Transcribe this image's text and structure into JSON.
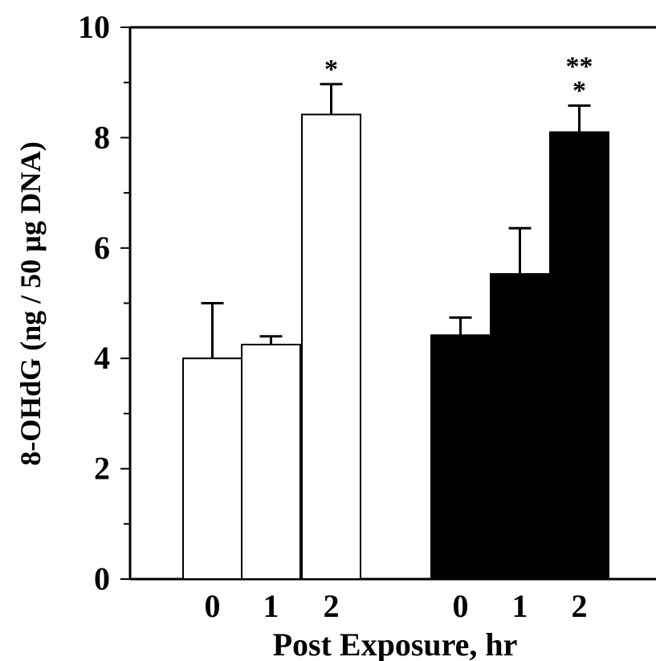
{
  "chart_data": {
    "type": "bar",
    "title": "",
    "xlabel": "Post Exposure, hr",
    "ylabel": "8-OHdG (ng / 50 µg DNA)",
    "ylim": [
      0,
      10
    ],
    "yticks": [
      "0",
      "2",
      "4",
      "6",
      "8",
      "10"
    ],
    "grid": false,
    "groups": [
      {
        "fill": "#ffffff",
        "categories": [
          "0",
          "1",
          "2"
        ],
        "values": [
          4.0,
          4.25,
          8.42
        ],
        "errors": [
          1.0,
          0.15,
          0.55
        ],
        "annotations": [
          "",
          "",
          "*"
        ]
      },
      {
        "fill": "#000000",
        "categories": [
          "0",
          "1",
          "2"
        ],
        "values": [
          4.42,
          5.53,
          8.1
        ],
        "errors": [
          0.32,
          0.83,
          0.48
        ],
        "annotations": [
          "",
          "",
          "**\n*"
        ]
      }
    ]
  }
}
